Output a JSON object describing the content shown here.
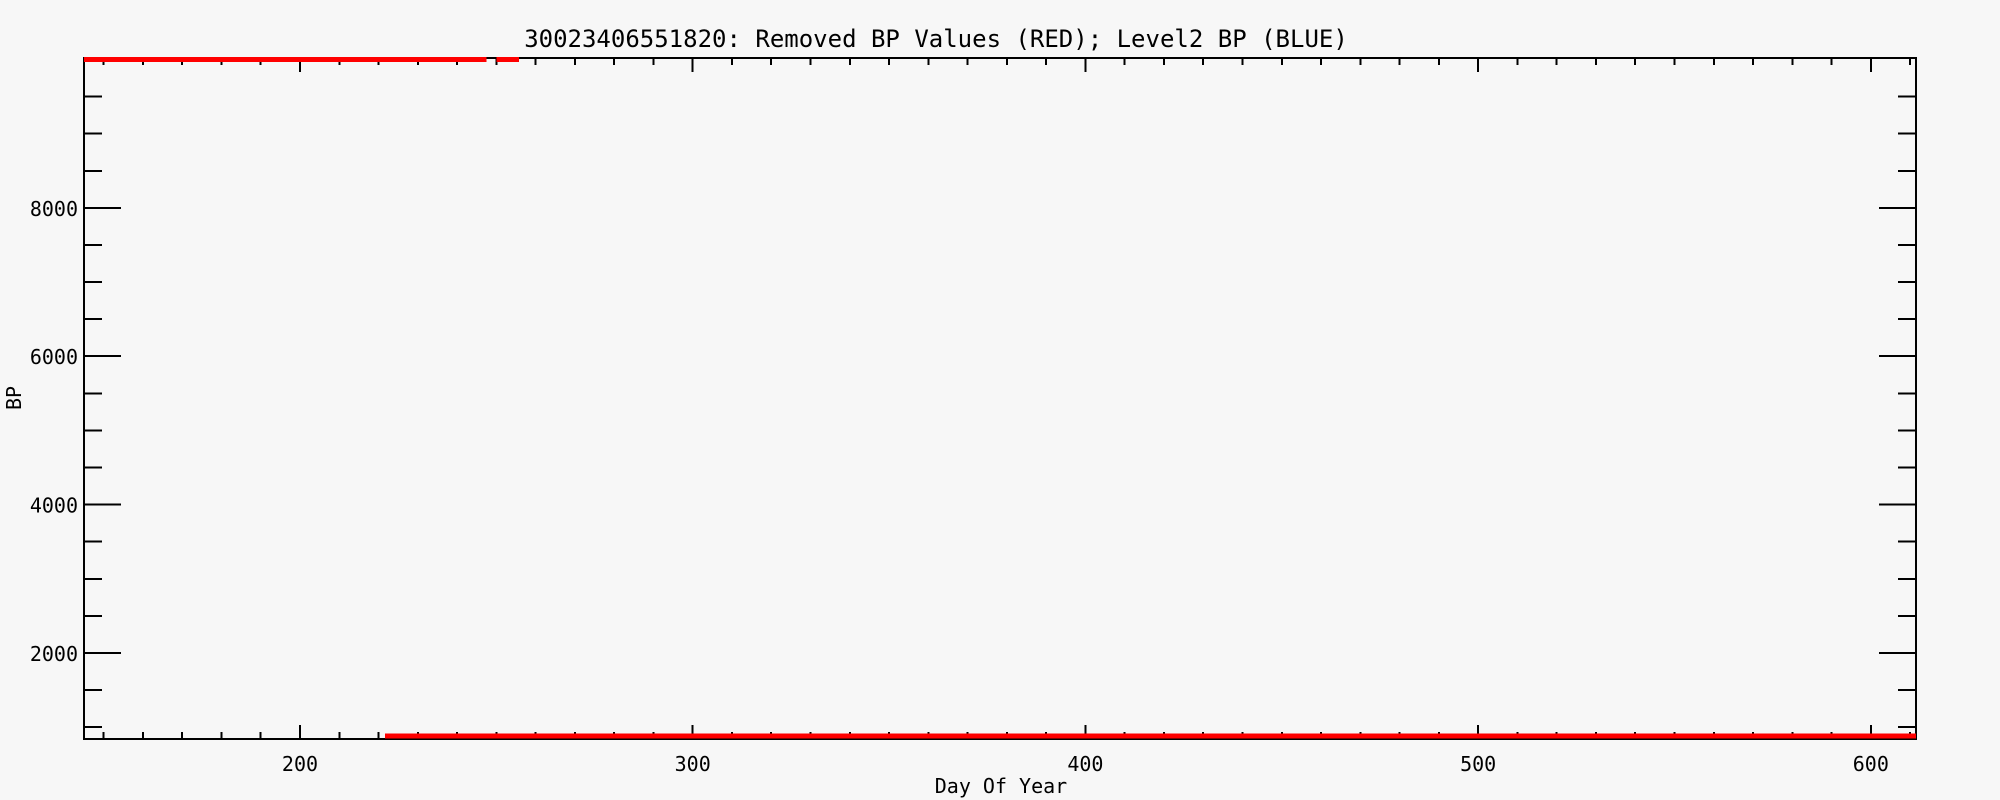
{
  "chart_data": {
    "type": "line",
    "title": "30023406551820: Removed BP Values (RED); Level2 BP (BLUE)",
    "xlabel": "Day Of Year",
    "ylabel": "BP",
    "xlim": [
      145,
      611.5
    ],
    "ylim": [
      840,
      10020
    ],
    "x_major_ticks": [
      200,
      300,
      400,
      500,
      600
    ],
    "x_minor_tick_step": 10,
    "y_major_ticks": [
      2000,
      4000,
      6000,
      8000
    ],
    "y_minor_tick_step": 500,
    "grid": false,
    "legend_position": "none",
    "background_color": "#f7f7f7",
    "axis_color": "#000000",
    "series": [
      {
        "name": "removed-bp-top-line",
        "label": "Removed BP Values (RED) - saturated high values along top edge",
        "color": "#ff0000",
        "y_value": 10000,
        "x_segments": [
          [
            145,
            247.5
          ],
          [
            250.1,
            255.8
          ]
        ]
      },
      {
        "name": "removed-bp-bottom-line",
        "label": "Removed BP Values (RED) - flat line along bottom edge",
        "color": "#ff0000",
        "y_value": 880,
        "x_segments": [
          [
            221.6,
            611.5
          ]
        ]
      }
    ]
  }
}
